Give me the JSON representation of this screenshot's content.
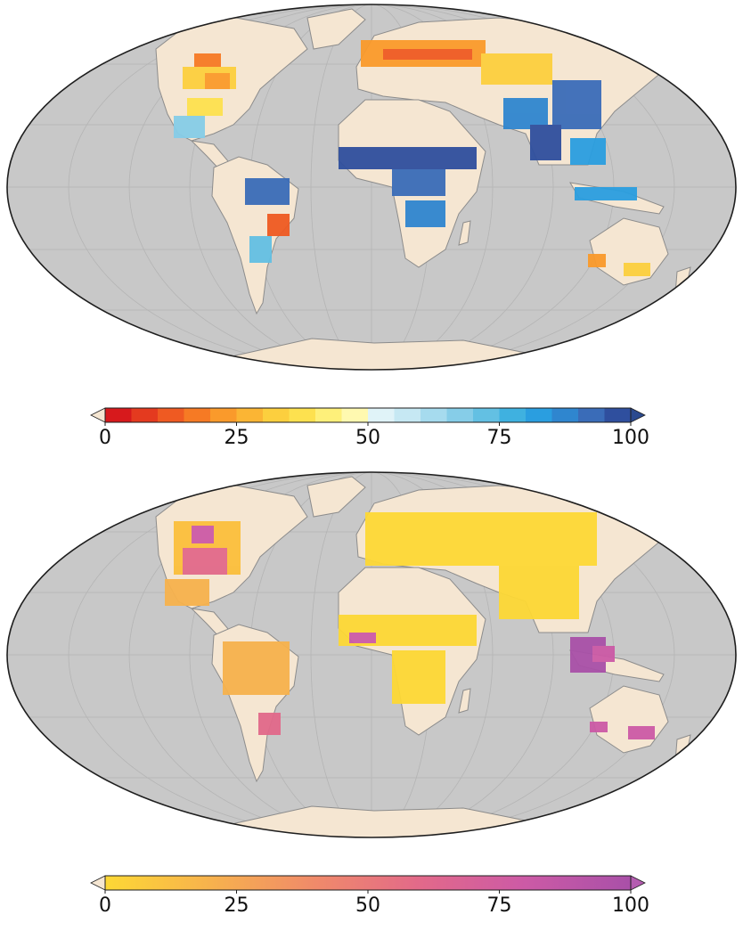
{
  "colors": {
    "ocean": "#c8c8c8",
    "land": "#f5e6d2",
    "coast": "#8c8c8c",
    "graticule": "#b4b4b4",
    "border": "#1e1e1e"
  },
  "top_map": {
    "projection": "Mollweide",
    "colorbar": {
      "ticks": [
        "0",
        "25",
        "50",
        "75",
        "100"
      ],
      "range": [
        0,
        100
      ],
      "extend": "both",
      "low_arrow_color": "#f5e6d2",
      "high_arrow_color": "#2b4a8f",
      "colors": [
        "#d7191c",
        "#e43a1f",
        "#ef5a22",
        "#f67a24",
        "#fa9a2b",
        "#fbb534",
        "#fccf3e",
        "#fde14f",
        "#fef07a",
        "#fff9b0",
        "#e0f3f8",
        "#c6e8f3",
        "#a6dbee",
        "#86cde8",
        "#63c0e3",
        "#3fb1e0",
        "#2a9ee0",
        "#2f86cf",
        "#3a6cb8",
        "#2f4f9e"
      ]
    },
    "legend_values": [
      0,
      25,
      50,
      75,
      100
    ]
  },
  "bottom_map": {
    "projection": "Mollweide",
    "colorbar": {
      "ticks": [
        "0",
        "25",
        "50",
        "75",
        "100"
      ],
      "range": [
        0,
        100
      ],
      "extend": "both",
      "low_arrow_color": "#f5e6d2",
      "high_arrow_color": "#b45cb0",
      "gradient": [
        "#fdd835",
        "#f7b24d",
        "#f08a6a",
        "#e2698a",
        "#cc5aa6",
        "#a950a8"
      ]
    }
  }
}
